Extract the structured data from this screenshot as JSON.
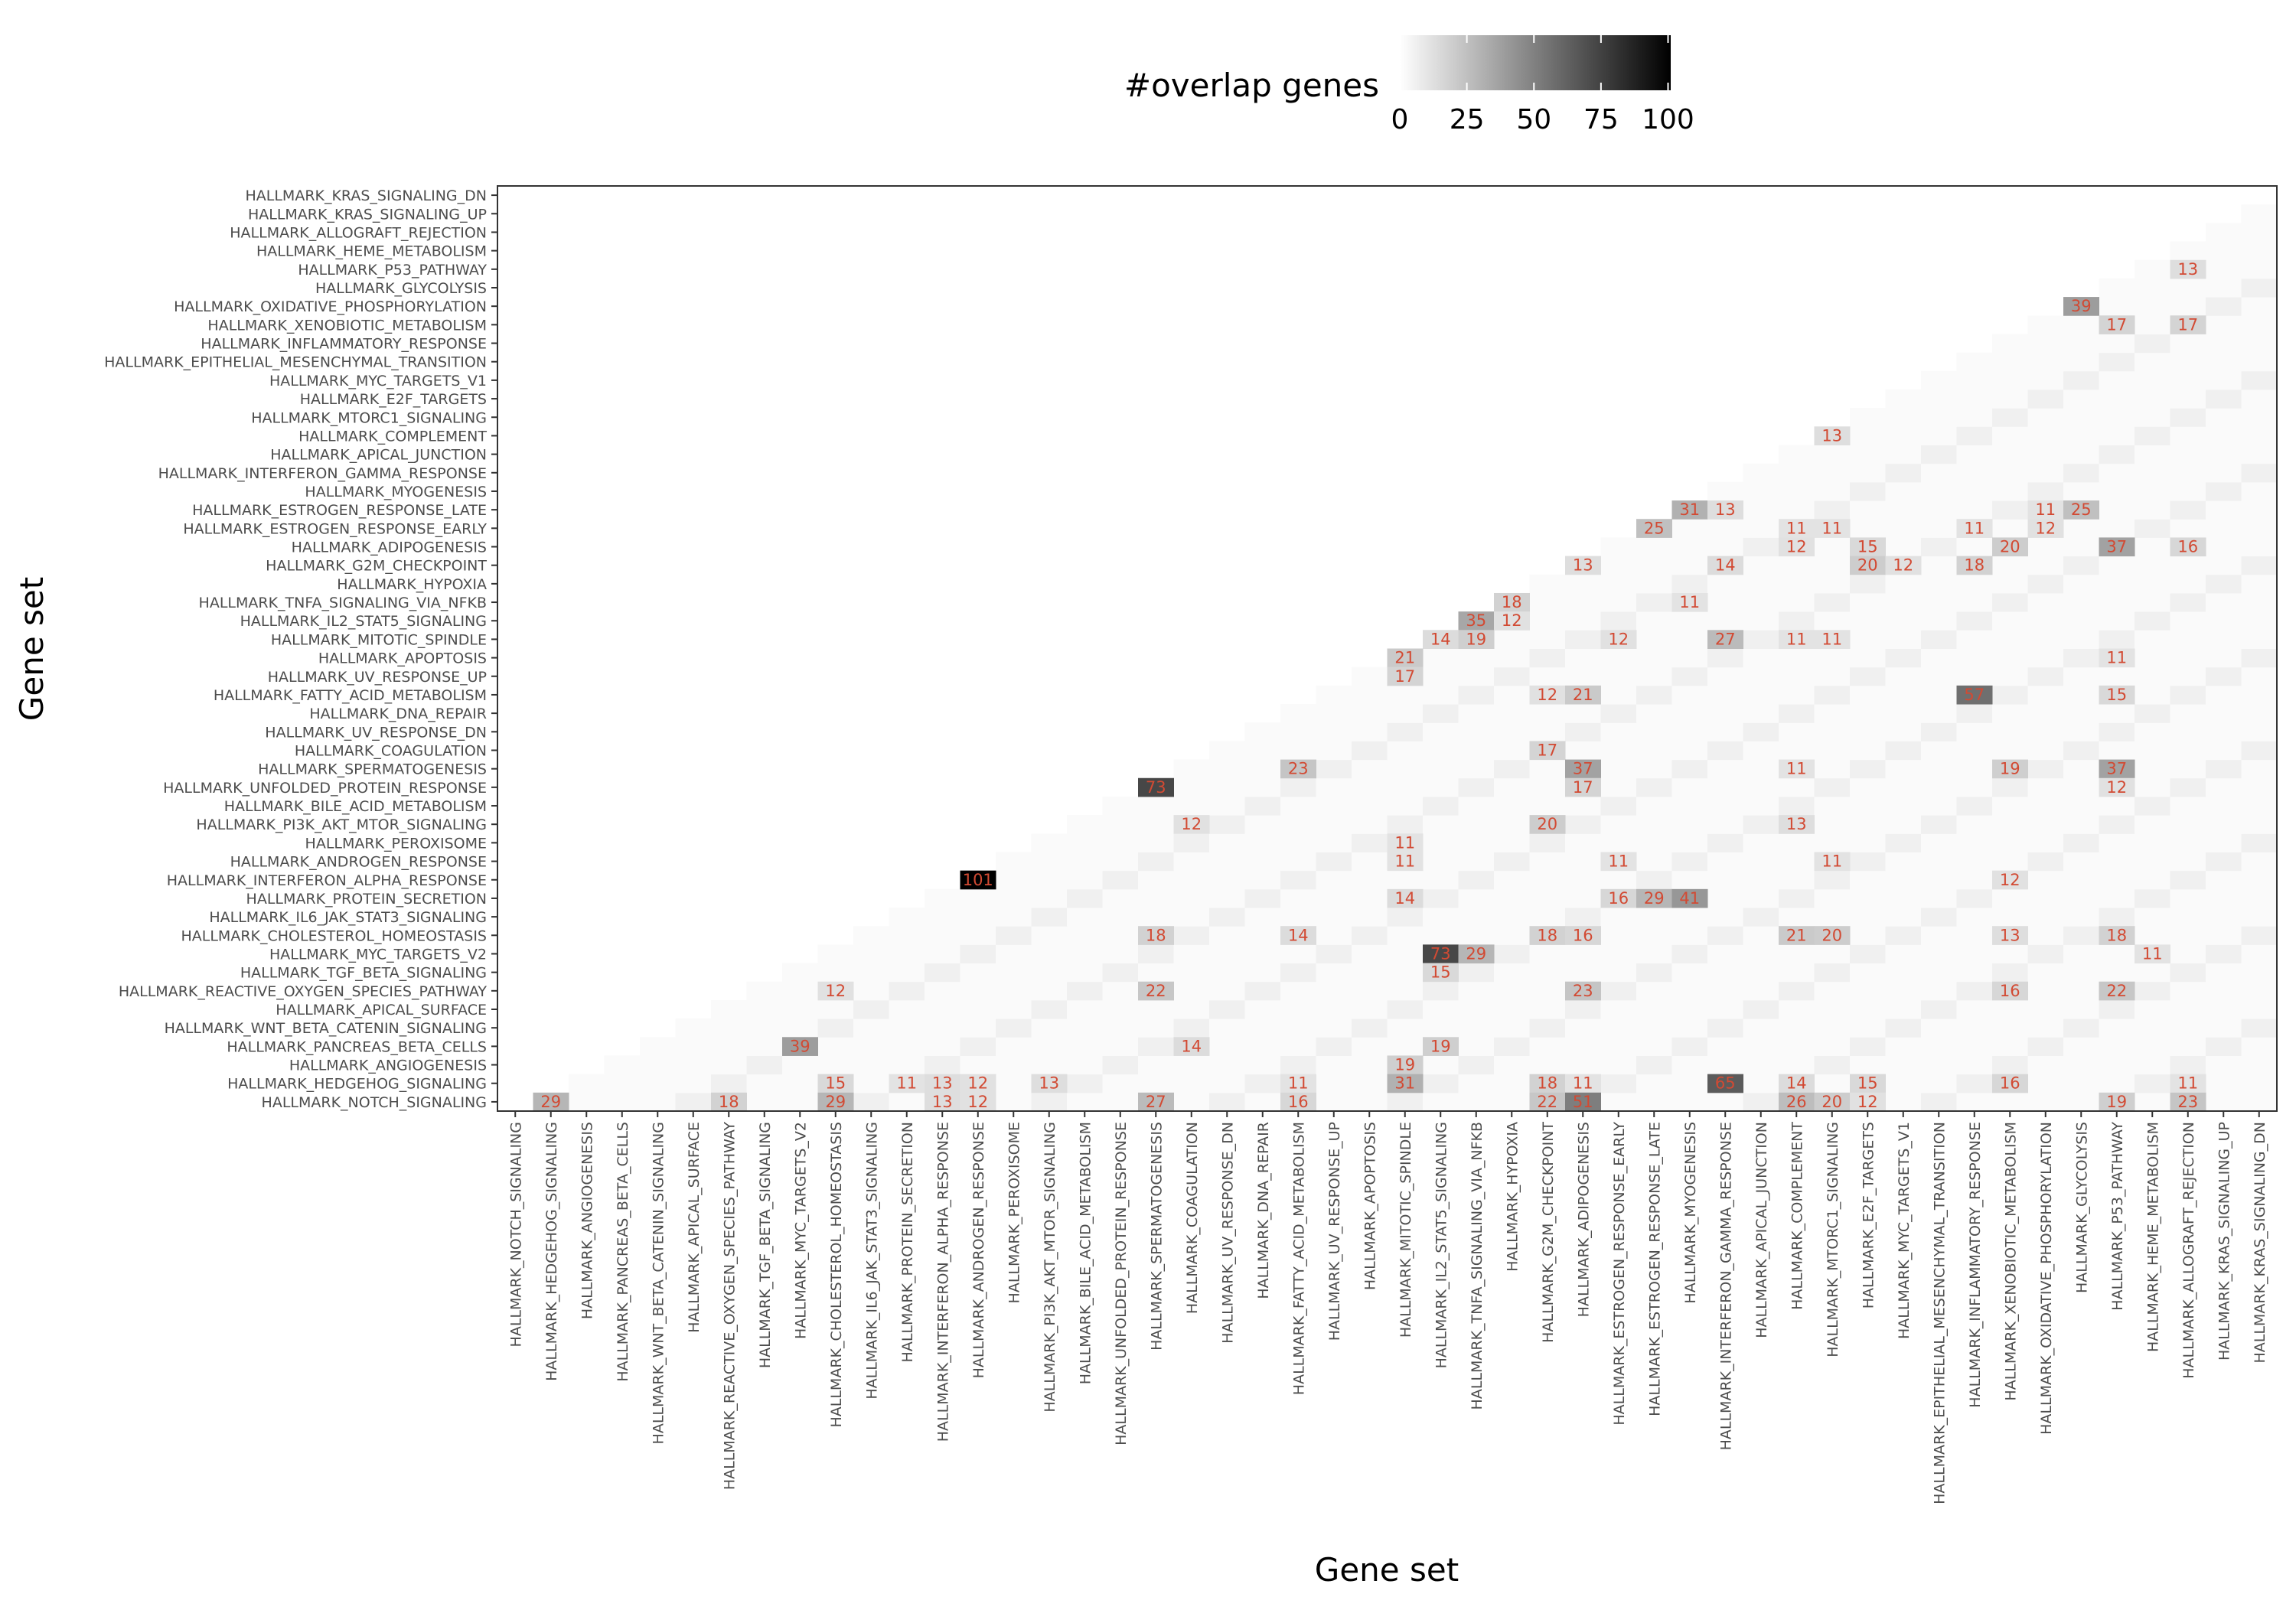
{
  "chart_data": {
    "type": "heatmap",
    "xlabel": "Gene set",
    "ylabel": "Gene set",
    "legend": {
      "title": "#overlap genes",
      "position": "top",
      "ticks": [
        "0",
        "25",
        "50",
        "75",
        "100"
      ],
      "range": [
        0,
        101
      ],
      "low_color": "#ffffff",
      "high_color": "#000000"
    },
    "label_color": "#d24a33",
    "label_threshold": 11,
    "grid": false,
    "categories": [
      "HALLMARK_NOTCH_SIGNALING",
      "HALLMARK_HEDGEHOG_SIGNALING",
      "HALLMARK_ANGIOGENESIS",
      "HALLMARK_PANCREAS_BETA_CELLS",
      "HALLMARK_WNT_BETA_CATENIN_SIGNALING",
      "HALLMARK_APICAL_SURFACE",
      "HALLMARK_REACTIVE_OXYGEN_SPECIES_PATHWAY",
      "HALLMARK_TGF_BETA_SIGNALING",
      "HALLMARK_MYC_TARGETS_V2",
      "HALLMARK_CHOLESTEROL_HOMEOSTASIS",
      "HALLMARK_IL6_JAK_STAT3_SIGNALING",
      "HALLMARK_PROTEIN_SECRETION",
      "HALLMARK_INTERFERON_ALPHA_RESPONSE",
      "HALLMARK_ANDROGEN_RESPONSE",
      "HALLMARK_PEROXISOME",
      "HALLMARK_PI3K_AKT_MTOR_SIGNALING",
      "HALLMARK_BILE_ACID_METABOLISM",
      "HALLMARK_UNFOLDED_PROTEIN_RESPONSE",
      "HALLMARK_SPERMATOGENESIS",
      "HALLMARK_COAGULATION",
      "HALLMARK_UV_RESPONSE_DN",
      "HALLMARK_DNA_REPAIR",
      "HALLMARK_FATTY_ACID_METABOLISM",
      "HALLMARK_UV_RESPONSE_UP",
      "HALLMARK_APOPTOSIS",
      "HALLMARK_MITOTIC_SPINDLE",
      "HALLMARK_IL2_STAT5_SIGNALING",
      "HALLMARK_TNFA_SIGNALING_VIA_NFKB",
      "HALLMARK_HYPOXIA",
      "HALLMARK_G2M_CHECKPOINT",
      "HALLMARK_ADIPOGENESIS",
      "HALLMARK_ESTROGEN_RESPONSE_EARLY",
      "HALLMARK_ESTROGEN_RESPONSE_LATE",
      "HALLMARK_MYOGENESIS",
      "HALLMARK_INTERFERON_GAMMA_RESPONSE",
      "HALLMARK_APICAL_JUNCTION",
      "HALLMARK_COMPLEMENT",
      "HALLMARK_MTORC1_SIGNALING",
      "HALLMARK_E2F_TARGETS",
      "HALLMARK_MYC_TARGETS_V1",
      "HALLMARK_EPITHELIAL_MESENCHYMAL_TRANSITION",
      "HALLMARK_INFLAMMATORY_RESPONSE",
      "HALLMARK_XENOBIOTIC_METABOLISM",
      "HALLMARK_OXIDATIVE_PHOSPHORYLATION",
      "HALLMARK_GLYCOLYSIS",
      "HALLMARK_P53_PATHWAY",
      "HALLMARK_HEME_METABOLISM",
      "HALLMARK_ALLOGRAFT_REJECTION",
      "HALLMARK_KRAS_SIGNALING_UP",
      "HALLMARK_KRAS_SIGNALING_DN"
    ],
    "cells_format": [
      "x_category_index",
      "y_category_index",
      "overlap_genes"
    ],
    "cells": [
      [
        47,
        45,
        13
      ],
      [
        44,
        43,
        39
      ],
      [
        45,
        42,
        17
      ],
      [
        47,
        42,
        17
      ],
      [
        37,
        36,
        13
      ],
      [
        33,
        32,
        31
      ],
      [
        34,
        32,
        13
      ],
      [
        43,
        32,
        11
      ],
      [
        44,
        32,
        25
      ],
      [
        32,
        31,
        25
      ],
      [
        36,
        31,
        11
      ],
      [
        37,
        31,
        11
      ],
      [
        41,
        31,
        11
      ],
      [
        43,
        31,
        12
      ],
      [
        36,
        30,
        12
      ],
      [
        38,
        30,
        15
      ],
      [
        42,
        30,
        20
      ],
      [
        45,
        30,
        37
      ],
      [
        47,
        30,
        16
      ],
      [
        30,
        29,
        13
      ],
      [
        34,
        29,
        14
      ],
      [
        38,
        29,
        20
      ],
      [
        39,
        29,
        12
      ],
      [
        41,
        29,
        18
      ],
      [
        28,
        27,
        18
      ],
      [
        33,
        27,
        11
      ],
      [
        27,
        26,
        35
      ],
      [
        28,
        26,
        12
      ],
      [
        26,
        25,
        14
      ],
      [
        27,
        25,
        19
      ],
      [
        31,
        25,
        12
      ],
      [
        34,
        25,
        27
      ],
      [
        36,
        25,
        11
      ],
      [
        37,
        25,
        11
      ],
      [
        25,
        24,
        21
      ],
      [
        45,
        24,
        11
      ],
      [
        25,
        23,
        17
      ],
      [
        29,
        22,
        12
      ],
      [
        30,
        22,
        21
      ],
      [
        41,
        22,
        57
      ],
      [
        45,
        22,
        15
      ],
      [
        29,
        19,
        17
      ],
      [
        22,
        18,
        23
      ],
      [
        30,
        18,
        37
      ],
      [
        36,
        18,
        11
      ],
      [
        42,
        18,
        19
      ],
      [
        45,
        18,
        37
      ],
      [
        18,
        17,
        73
      ],
      [
        30,
        17,
        17
      ],
      [
        45,
        17,
        12
      ],
      [
        19,
        15,
        12
      ],
      [
        29,
        15,
        20
      ],
      [
        36,
        15,
        13
      ],
      [
        25,
        14,
        11
      ],
      [
        25,
        13,
        11
      ],
      [
        31,
        13,
        11
      ],
      [
        37,
        13,
        11
      ],
      [
        13,
        12,
        101
      ],
      [
        42,
        12,
        12
      ],
      [
        25,
        11,
        14
      ],
      [
        31,
        11,
        16
      ],
      [
        32,
        11,
        29
      ],
      [
        33,
        11,
        41
      ],
      [
        18,
        9,
        18
      ],
      [
        22,
        9,
        14
      ],
      [
        29,
        9,
        18
      ],
      [
        30,
        9,
        16
      ],
      [
        36,
        9,
        21
      ],
      [
        37,
        9,
        20
      ],
      [
        42,
        9,
        13
      ],
      [
        45,
        9,
        18
      ],
      [
        26,
        8,
        73
      ],
      [
        27,
        8,
        29
      ],
      [
        46,
        8,
        11
      ],
      [
        26,
        7,
        15
      ],
      [
        9,
        6,
        12
      ],
      [
        18,
        6,
        22
      ],
      [
        30,
        6,
        23
      ],
      [
        42,
        6,
        16
      ],
      [
        45,
        6,
        22
      ],
      [
        8,
        3,
        39
      ],
      [
        19,
        3,
        14
      ],
      [
        26,
        3,
        19
      ],
      [
        25,
        2,
        19
      ],
      [
        9,
        1,
        15
      ],
      [
        11,
        1,
        11
      ],
      [
        12,
        1,
        13
      ],
      [
        13,
        1,
        12
      ],
      [
        15,
        1,
        13
      ],
      [
        22,
        1,
        11
      ],
      [
        25,
        1,
        31
      ],
      [
        29,
        1,
        18
      ],
      [
        30,
        1,
        11
      ],
      [
        34,
        1,
        65
      ],
      [
        36,
        1,
        14
      ],
      [
        38,
        1,
        15
      ],
      [
        42,
        1,
        16
      ],
      [
        47,
        1,
        11
      ],
      [
        1,
        0,
        29
      ],
      [
        6,
        0,
        18
      ],
      [
        9,
        0,
        29
      ],
      [
        12,
        0,
        13
      ],
      [
        13,
        0,
        12
      ],
      [
        18,
        0,
        27
      ],
      [
        22,
        0,
        16
      ],
      [
        29,
        0,
        22
      ],
      [
        30,
        0,
        51
      ],
      [
        36,
        0,
        26
      ],
      [
        37,
        0,
        20
      ],
      [
        38,
        0,
        12
      ],
      [
        45,
        0,
        19
      ],
      [
        47,
        0,
        23
      ]
    ]
  }
}
